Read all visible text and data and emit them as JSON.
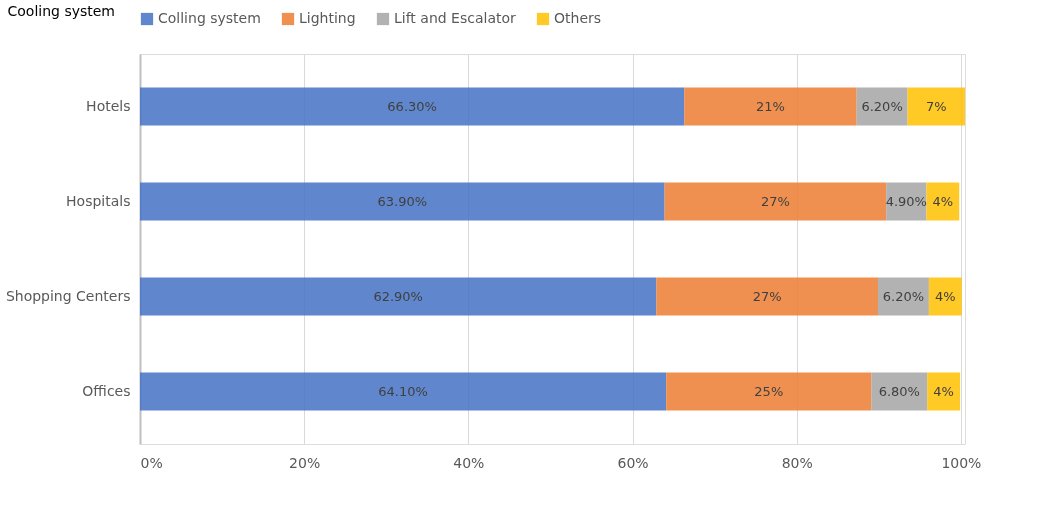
{
  "chart_data": {
    "type": "bar",
    "orientation": "horizontal",
    "stacked": true,
    "categories": [
      "Hotels",
      "Hospitals",
      "Shopping Centers",
      "Offices"
    ],
    "series": [
      {
        "name": "Colling system",
        "color": "#4472c4",
        "values": [
          66.3,
          63.9,
          62.9,
          64.1
        ],
        "value_labels": [
          "66.30%",
          "63.90%",
          "62.90%",
          "64.10%"
        ]
      },
      {
        "name": "Lighting",
        "color": "#ed7d31",
        "values": [
          21,
          27,
          27,
          25
        ],
        "value_labels": [
          "21%",
          "27%",
          "27%",
          "25%"
        ]
      },
      {
        "name": "Lift and Escalator",
        "color": "#a5a5a5",
        "values": [
          6.2,
          4.9,
          6.2,
          6.8
        ],
        "value_labels": [
          "6.20%",
          "4.90%",
          "6.20%",
          "6.80%"
        ]
      },
      {
        "name": "Others",
        "color": "#ffc000",
        "values": [
          7,
          4,
          4,
          4
        ],
        "value_labels": [
          "7%",
          "4%",
          "4%",
          "4%"
        ]
      }
    ],
    "xlim": [
      0,
      100.5
    ],
    "xticks": [
      {
        "value": 0,
        "label": "0%"
      },
      {
        "value": 20,
        "label": "20%"
      },
      {
        "value": 40,
        "label": "40%"
      },
      {
        "value": 60,
        "label": "60%"
      },
      {
        "value": 80,
        "label": "80%"
      },
      {
        "value": 100,
        "label": "100%"
      }
    ],
    "grid": "x",
    "legend": "top",
    "annotations": [
      "Cooling system"
    ]
  }
}
